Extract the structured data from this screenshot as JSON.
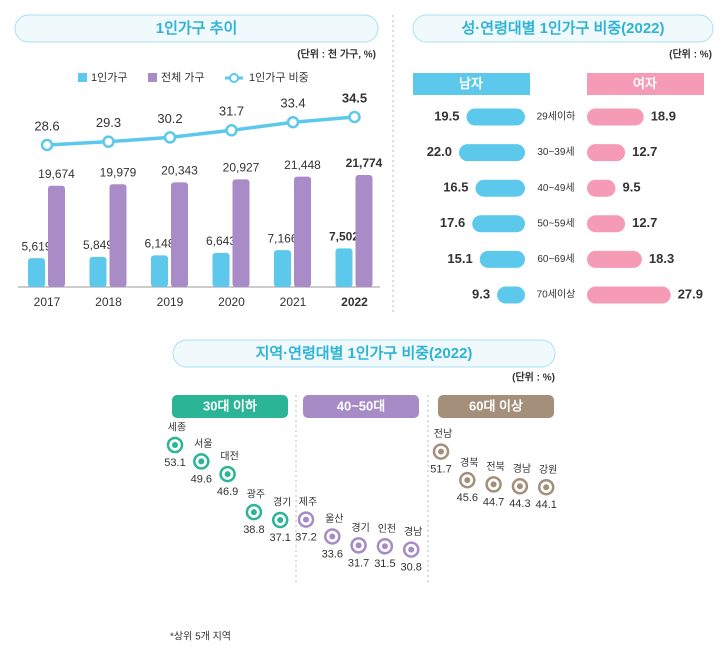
{
  "chart_data": [
    {
      "type": "bar",
      "title": "1인가구 추이",
      "subtitle": "(단위 : 천 가구, %)",
      "categories": [
        "2017",
        "2018",
        "2019",
        "2020",
        "2021",
        "2022"
      ],
      "series": [
        {
          "name": "1인가구",
          "color": "#5cc9ec",
          "values": [
            5619,
            5849,
            6148,
            6643,
            7166,
            7502
          ],
          "value_labels": [
            "5,619",
            "5,849",
            "6,148",
            "6,643",
            "7,166",
            "7,502"
          ]
        },
        {
          "name": "전체 가구",
          "color": "#a98bc8",
          "values": [
            19674,
            19979,
            20343,
            20927,
            21448,
            21774
          ],
          "value_labels": [
            "19,674",
            "19,979",
            "20,343",
            "20,927",
            "21,448",
            "21,774"
          ]
        },
        {
          "name": "1인가구 비중",
          "color": "#5cc9ec",
          "values": [
            28.6,
            29.3,
            30.2,
            31.7,
            33.4,
            34.5
          ],
          "axis": "y2"
        }
      ]
    },
    {
      "type": "butterfly",
      "title": "성·연령대별 1인가구 비중(2022)",
      "subtitle": "(단위 : %)",
      "categories": [
        "29세이하",
        "30~39세",
        "40~49세",
        "50~59세",
        "60~69세",
        "70세이상"
      ],
      "series": [
        {
          "name": "남자",
          "color": "#5cc9ec",
          "values": [
            19.5,
            22.0,
            16.5,
            17.6,
            15.1,
            9.3
          ],
          "value_labels": [
            "19.5",
            "22.0",
            "16.5",
            "17.6",
            "15.1",
            "9.3"
          ]
        },
        {
          "name": "여자",
          "color": "#f59bb6",
          "values": [
            18.9,
            12.7,
            9.5,
            12.7,
            18.3,
            27.9
          ]
        }
      ]
    },
    {
      "type": "dot",
      "title": "지역·연령대별 1인가구 비중(2022)",
      "subtitle": "(단위 : %)",
      "groups": [
        {
          "name": "30대 이하",
          "color": "#2bb596",
          "categories": [
            "세종",
            "서울",
            "대전",
            "광주",
            "경기"
          ],
          "values": [
            53.1,
            49.6,
            46.9,
            38.8,
            37.1
          ]
        },
        {
          "name": "40~50대",
          "color": "#a68bc6",
          "categories": [
            "제주",
            "울산",
            "경기",
            "인천",
            "경남"
          ],
          "values": [
            37.2,
            33.6,
            31.7,
            31.5,
            30.8
          ]
        },
        {
          "name": "60대 이상",
          "color": "#a38f7a",
          "categories": [
            "전남",
            "경북",
            "전북",
            "경남",
            "강원"
          ],
          "values": [
            51.7,
            45.6,
            44.7,
            44.3,
            44.1
          ]
        }
      ]
    }
  ],
  "footnote": "*상위 5개 지역"
}
